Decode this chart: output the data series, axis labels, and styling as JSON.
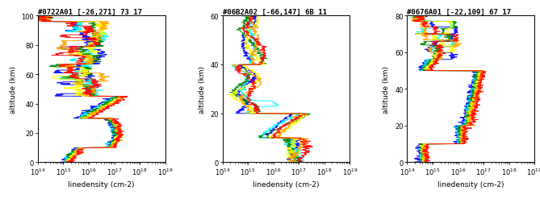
{
  "panels": [
    {
      "title": "#0722A01 [-26,271] 73 17",
      "ylim": [
        0,
        100
      ],
      "yticks": [
        0,
        20,
        40,
        60,
        80,
        100
      ],
      "xlim_log": [
        14,
        19
      ],
      "xlabel": "linedensity (cm-2)",
      "ylabel": "altitude (km)"
    },
    {
      "title": "#06B2A02 [-66,147] 6B 11",
      "ylim": [
        0,
        60
      ],
      "yticks": [
        0,
        20,
        40,
        60
      ],
      "xlim_log": [
        14,
        19
      ],
      "xlabel": "linedensity (cm-2)",
      "ylabel": "altitude (km)"
    },
    {
      "title": "#0676A01 [-22,109] 67 17",
      "ylim": [
        0,
        80
      ],
      "yticks": [
        0,
        20,
        40,
        60,
        80
      ],
      "xlim_log": [
        14,
        19
      ],
      "xlabel": "linedensity (cm-2)",
      "ylabel": "altitude (km)"
    }
  ],
  "colors": [
    "blue",
    "cyan",
    "green",
    "yellow",
    "orange",
    "red"
  ],
  "background": "white",
  "title_fontsize": 6.5,
  "label_fontsize": 6.5,
  "tick_fontsize": 6
}
